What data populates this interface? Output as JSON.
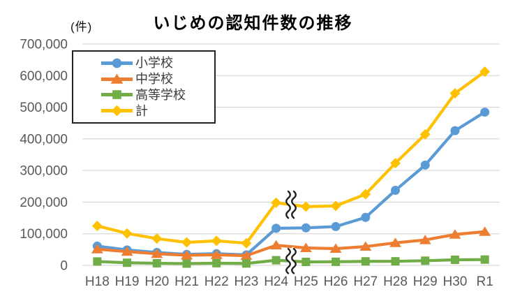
{
  "chart_data": {
    "type": "line",
    "title": "いじめの認知件数の推移",
    "unit_label": "(件)",
    "xlabel": "",
    "ylabel": "件",
    "categories": [
      "H18",
      "H19",
      "H20",
      "H21",
      "H22",
      "H23",
      "H24",
      "H25",
      "H26",
      "H27",
      "H28",
      "H29",
      "H30",
      "R1"
    ],
    "series": [
      {
        "id": "elementary-school",
        "name": "小学校",
        "color": "#5B9BD5",
        "marker": "circle",
        "values": [
          60897,
          48896,
          40807,
          34766,
          36909,
          33124,
          117384,
          118748,
          122734,
          151692,
          237256,
          317121,
          425844,
          484545
        ]
      },
      {
        "id": "junior-high-school",
        "name": "中学校",
        "color": "#ED7D31",
        "marker": "triangle",
        "values": [
          51310,
          43505,
          36795,
          32111,
          33323,
          30749,
          63634,
          55248,
          52971,
          59502,
          71309,
          80424,
          97704,
          106524
        ]
      },
      {
        "id": "high-school",
        "name": "高等学校",
        "color": "#70AD47",
        "marker": "square",
        "values": [
          12307,
          8355,
          6737,
          5642,
          7018,
          6020,
          16274,
          11039,
          11404,
          12664,
          12874,
          14789,
          17709,
          18352
        ]
      },
      {
        "id": "total",
        "name": "計",
        "color": "#FFC000",
        "marker": "diamond",
        "values": [
          124898,
          101097,
          84648,
          72778,
          77630,
          70231,
          198109,
          185803,
          188072,
          225132,
          323143,
          414378,
          543933,
          612496
        ]
      }
    ],
    "ylim": [
      0,
      700000
    ],
    "y_ticks": [
      0,
      100000,
      200000,
      300000,
      400000,
      500000,
      600000,
      700000
    ],
    "y_tick_labels": [
      "0",
      "100,000",
      "200,000",
      "300,000",
      "400,000",
      "500,000",
      "600,000",
      "700,000"
    ],
    "grid": true,
    "legend_position": "upper-left-inside",
    "break_marks": [
      {
        "series": "total",
        "between": [
          6,
          7
        ],
        "height": 38
      },
      {
        "series": "high-school",
        "between": [
          6,
          7
        ],
        "height": 35
      }
    ],
    "style": {
      "grid_color": "#D9D9D9",
      "axis_text_color": "#595959",
      "title_color": "#000000",
      "legend_border_color": "#222222",
      "legend_text_color": "#3A3A3A",
      "break_mark_color": "#1F1F1F",
      "background": "#FFFFFF"
    }
  }
}
